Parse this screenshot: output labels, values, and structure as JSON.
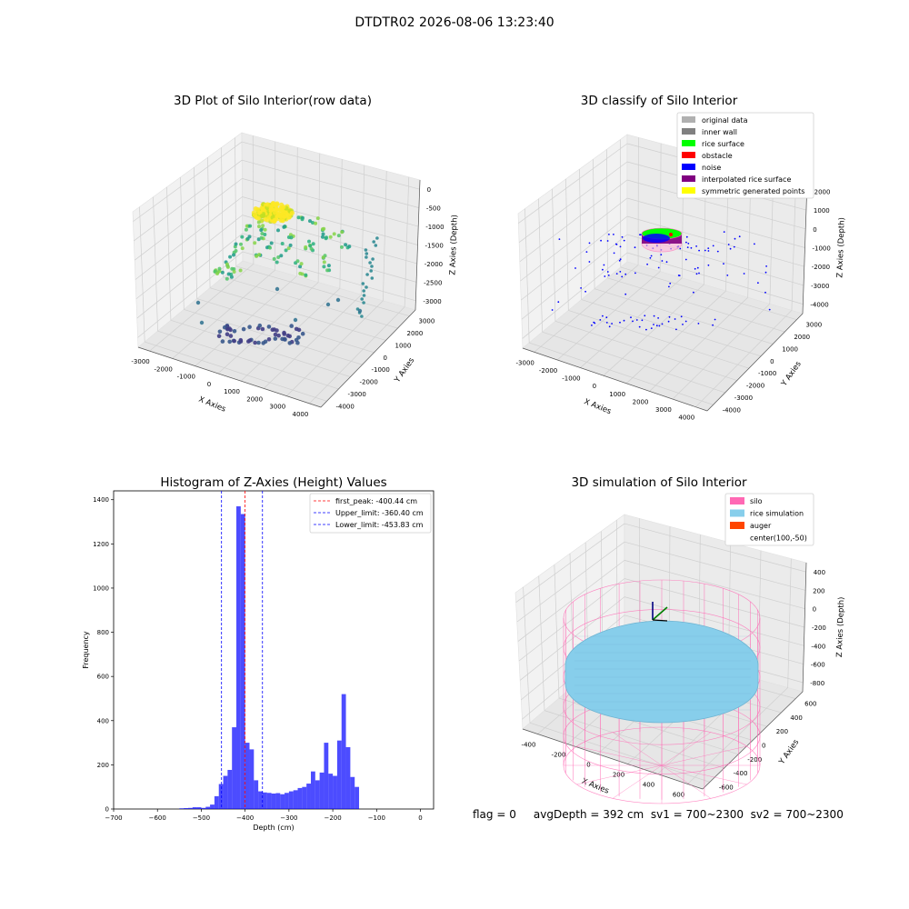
{
  "suptitle": "DTDTR02 2026-08-06 13:23:40",
  "status_text": "flag = 0     avgDepth = 392 cm  sv1 = 700~2300  sv2 = 700~2300",
  "chart_data": [
    {
      "type": "scatter3d",
      "title": "3D Plot of Silo Interior(row data)",
      "xlabel": "X Axies",
      "ylabel": "Y Axies",
      "zlabel": "Z Axies (Depth)",
      "xticks": [
        "-3000",
        "-2000",
        "-1000",
        "0",
        "1000",
        "2000",
        "3000",
        "4000"
      ],
      "yticks": [
        "-4000",
        "-3000",
        "-2000",
        "-1000",
        "0",
        "1000",
        "2000",
        "3000"
      ],
      "zticks": [
        "0",
        "-500",
        "-1000",
        "-1500",
        "-2000",
        "-2500",
        "-3000"
      ],
      "colormap": "viridis (color by depth)",
      "description_points": "cluster near top (~-300 depth, yellow), ring of mid-depth points (~-1000, green), floor points (~-3000, dark blue)"
    },
    {
      "type": "scatter3d",
      "title": "3D classify of Silo Interior",
      "xlabel": "X Axies",
      "ylabel": "Y Axies",
      "zlabel": "Z Axies (Depth)",
      "xticks": [
        "-3000",
        "-2000",
        "-1000",
        "0",
        "1000",
        "2000",
        "3000",
        "4000"
      ],
      "yticks": [
        "-4000",
        "-3000",
        "-2000",
        "-1000",
        "0",
        "1000",
        "2000",
        "3000"
      ],
      "zticks": [
        "2000",
        "1000",
        "0",
        "-1000",
        "-2000",
        "-3000",
        "-4000"
      ],
      "legend": [
        {
          "label": "original data",
          "color": "#b0b0b0"
        },
        {
          "label": "inner wall",
          "color": "#808080"
        },
        {
          "label": "rice surface",
          "color": "#00ff00"
        },
        {
          "label": "obstacle",
          "color": "#ff0000"
        },
        {
          "label": "noise",
          "color": "#0000ff"
        },
        {
          "label": "interpolated rice surface",
          "color": "#800080"
        },
        {
          "label": "symmetric generated points",
          "color": "#ffff00"
        }
      ],
      "legend_loc": "upper right"
    },
    {
      "type": "histogram",
      "title": "Histogram of Z-Axies (Height) Values",
      "xlabel": "Depth (cm)",
      "ylabel": "Frequency",
      "xlim": [
        -700,
        30
      ],
      "ylim": [
        0,
        1440
      ],
      "xticks": [
        -700,
        -600,
        -500,
        -400,
        -300,
        -200,
        -100,
        0
      ],
      "yticks": [
        0,
        200,
        400,
        600,
        800,
        1000,
        1200,
        1400
      ],
      "bin_width": 10,
      "bins": [
        [
          -550,
          3
        ],
        [
          -540,
          4
        ],
        [
          -530,
          5
        ],
        [
          -520,
          8
        ],
        [
          -510,
          8
        ],
        [
          -500,
          5
        ],
        [
          -490,
          10
        ],
        [
          -480,
          20
        ],
        [
          -470,
          58
        ],
        [
          -460,
          113
        ],
        [
          -450,
          150
        ],
        [
          -440,
          177
        ],
        [
          -430,
          370
        ],
        [
          -420,
          1370
        ],
        [
          -410,
          1335
        ],
        [
          -400,
          300
        ],
        [
          -390,
          270
        ],
        [
          -380,
          130
        ],
        [
          -370,
          80
        ],
        [
          -360,
          75
        ],
        [
          -350,
          73
        ],
        [
          -340,
          70
        ],
        [
          -330,
          72
        ],
        [
          -320,
          67
        ],
        [
          -310,
          73
        ],
        [
          -300,
          80
        ],
        [
          -290,
          85
        ],
        [
          -280,
          95
        ],
        [
          -270,
          100
        ],
        [
          -260,
          115
        ],
        [
          -250,
          170
        ],
        [
          -240,
          130
        ],
        [
          -230,
          165
        ],
        [
          -220,
          300
        ],
        [
          -210,
          160
        ],
        [
          -200,
          150
        ],
        [
          -190,
          310
        ],
        [
          -180,
          520
        ],
        [
          -170,
          280
        ],
        [
          -160,
          145
        ],
        [
          -150,
          100
        ]
      ],
      "bar_color": "#0000ff",
      "vlines": [
        {
          "label": "first_peak: -400.44 cm",
          "x": -400.44,
          "color": "#ff0000"
        },
        {
          "label": "Upper_limit: -360.40 cm",
          "x": -360.4,
          "color": "#0000ff"
        },
        {
          "label": "Lower_limit: -453.83 cm",
          "x": -453.83,
          "color": "#0000ff"
        }
      ],
      "legend_loc": "upper right"
    },
    {
      "type": "surface3d",
      "title": "3D simulation of Silo Interior",
      "xlabel": "X Axies",
      "ylabel": "Y Axies",
      "zlabel": "Z Axies (Depth)",
      "xticks": [
        "-400",
        "-200",
        "0",
        "200",
        "400",
        "600"
      ],
      "yticks": [
        "-600",
        "-400",
        "-200",
        "0",
        "200",
        "400",
        "600"
      ],
      "zticks": [
        "400",
        "200",
        "0",
        "-200",
        "-400",
        "-600",
        "-800"
      ],
      "legend": [
        {
          "label": "silo",
          "color": "#ff69b4"
        },
        {
          "label": "rice simulation",
          "color": "#87ceeb"
        },
        {
          "label": "auger",
          "color": "#ff4500"
        },
        {
          "label": "center(100,-50)",
          "color": ""
        }
      ],
      "legend_loc": "upper right"
    }
  ]
}
